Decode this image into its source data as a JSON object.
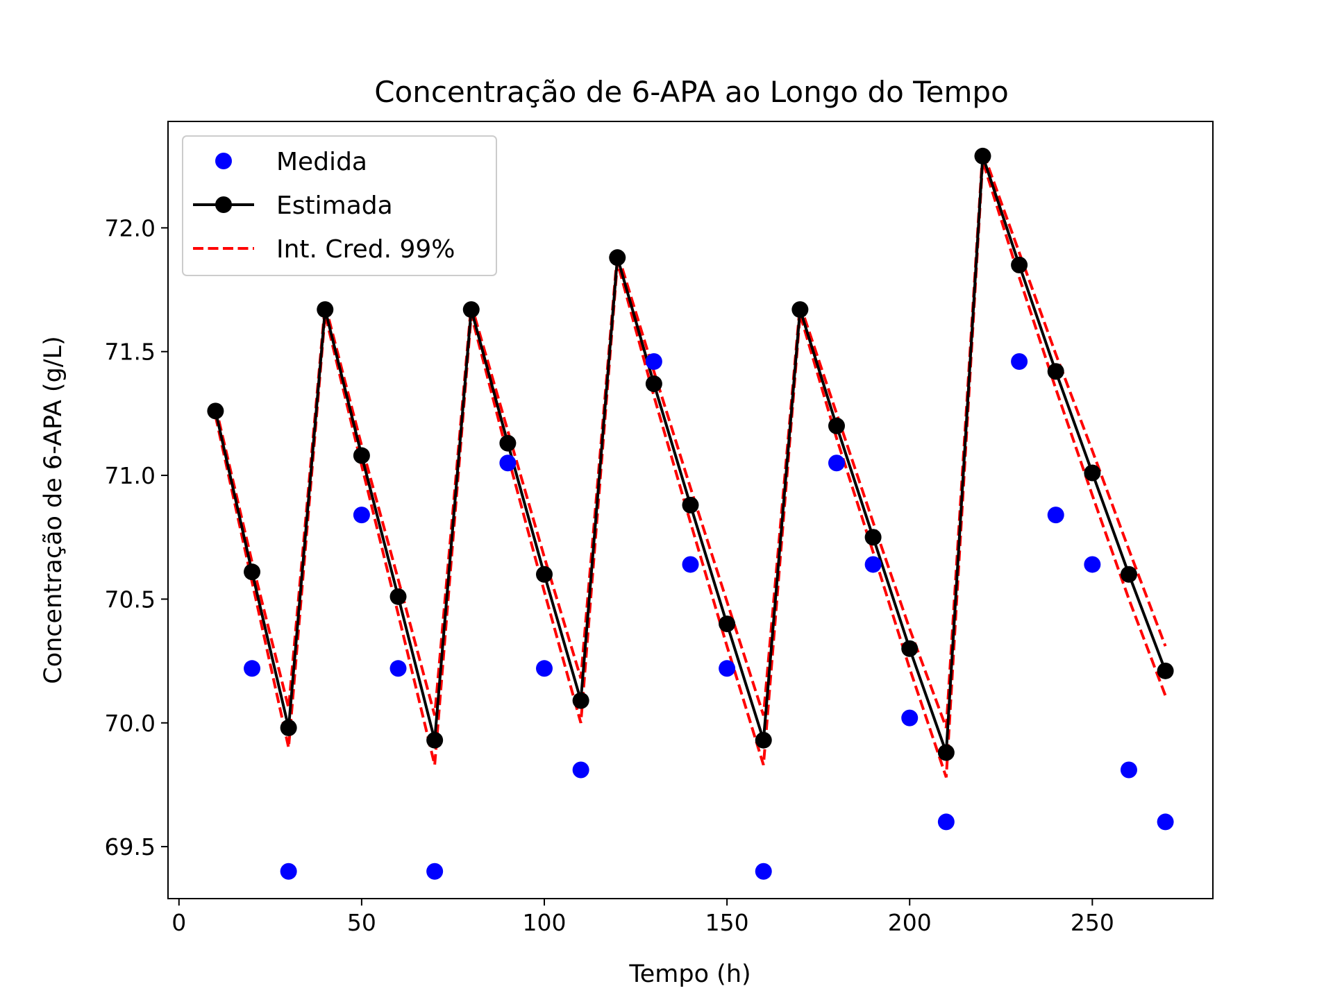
{
  "chart_data": {
    "type": "line",
    "title": "Concentração de 6-APA ao Longo do Tempo",
    "xlabel": "Tempo (h)",
    "ylabel": "Concentração de 6-APA (g/L)",
    "xlim": [
      -3,
      283
    ],
    "ylim": [
      69.29,
      72.43
    ],
    "xticks": [
      0,
      50,
      100,
      150,
      200,
      250
    ],
    "xtick_labels": [
      "0",
      "50",
      "100",
      "150",
      "200",
      "250"
    ],
    "yticks": [
      69.5,
      70.0,
      70.5,
      71.0,
      71.5,
      72.0
    ],
    "ytick_labels": [
      "69.5",
      "70.0",
      "70.5",
      "71.0",
      "71.5",
      "72.0"
    ],
    "grid": false,
    "legend_position": "top-left",
    "x": [
      10,
      20,
      30,
      40,
      50,
      60,
      70,
      80,
      90,
      100,
      110,
      120,
      130,
      140,
      150,
      160,
      170,
      180,
      190,
      200,
      210,
      220,
      230,
      240,
      250,
      260,
      270
    ],
    "series": [
      {
        "name": "Medida",
        "style": "markers",
        "color": "#0000ff",
        "x": [
          20,
          30,
          50,
          60,
          70,
          90,
          100,
          110,
          130,
          140,
          150,
          160,
          180,
          190,
          200,
          210,
          230,
          240,
          250,
          260,
          270
        ],
        "values": [
          70.22,
          69.4,
          70.84,
          70.22,
          69.4,
          71.05,
          70.22,
          69.81,
          71.46,
          70.64,
          70.22,
          69.4,
          71.05,
          70.64,
          70.02,
          69.6,
          71.46,
          70.84,
          70.64,
          69.81,
          69.6
        ]
      },
      {
        "name": "Estimada",
        "style": "line-markers",
        "color": "#000000",
        "values": [
          71.26,
          70.61,
          69.98,
          71.67,
          71.08,
          70.51,
          69.93,
          71.67,
          71.13,
          70.6,
          70.09,
          71.88,
          71.37,
          70.88,
          70.4,
          69.93,
          71.67,
          71.2,
          70.75,
          70.3,
          69.88,
          72.29,
          71.85,
          71.42,
          71.01,
          70.6,
          70.21
        ]
      },
      {
        "name": "Int. Cred. 99%",
        "style": "dashed",
        "color": "#ff0000",
        "lower": [
          71.24,
          70.57,
          69.9,
          71.65,
          71.04,
          70.44,
          69.83,
          71.65,
          71.08,
          70.53,
          70.0,
          71.86,
          71.32,
          70.81,
          70.31,
          69.83,
          71.65,
          71.15,
          70.69,
          70.22,
          69.78,
          72.27,
          71.8,
          71.35,
          70.92,
          70.5,
          70.11
        ],
        "upper": [
          71.28,
          70.65,
          70.06,
          71.69,
          71.12,
          70.58,
          70.03,
          71.69,
          71.18,
          70.67,
          70.18,
          71.9,
          71.42,
          70.95,
          70.49,
          70.03,
          71.69,
          71.25,
          70.81,
          70.38,
          69.98,
          72.31,
          71.9,
          71.49,
          71.1,
          70.7,
          70.31
        ]
      }
    ]
  }
}
